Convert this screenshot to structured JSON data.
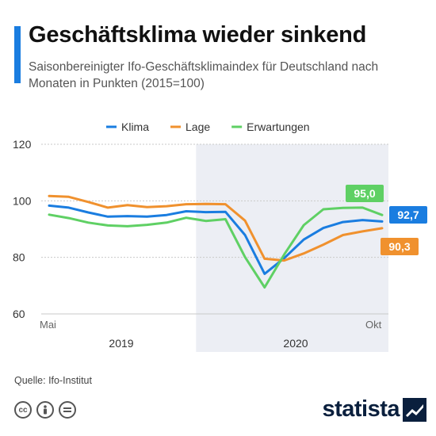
{
  "header": {
    "title": "Geschäftsklima wieder sinkend",
    "subtitle": "Saisonbereinigter Ifo-Geschäftsklimaindex für Deutschland nach Monaten in Punkten (2015=100)"
  },
  "colors": {
    "accent": "#1a7de0",
    "klima": "#1a7de0",
    "lage": "#f0912e",
    "erwartungen": "#5fd064",
    "shade": "#eceef4",
    "grid": "#c9c9c9"
  },
  "chart_data": {
    "type": "line",
    "ylim": [
      60,
      120
    ],
    "yticks": [
      60,
      80,
      100,
      120
    ],
    "x_start_label": "Mai",
    "x_end_label": "Okt",
    "year_labels": [
      "2019",
      "2020"
    ],
    "shaded_from_index": 8,
    "series": [
      {
        "name": "Klima",
        "color_key": "klima",
        "values": [
          98.3,
          97.6,
          95.9,
          94.4,
          94.6,
          94.4,
          95.0,
          96.3,
          96.0,
          96.1,
          87.9,
          74.2,
          79.7,
          86.3,
          90.4,
          92.5,
          93.2,
          92.7
        ],
        "end_label": "92,7"
      },
      {
        "name": "Lage",
        "color_key": "lage",
        "values": [
          101.7,
          101.4,
          99.6,
          97.6,
          98.5,
          97.8,
          98.1,
          98.8,
          98.9,
          98.8,
          93.0,
          79.5,
          78.9,
          81.4,
          84.5,
          87.9,
          89.2,
          90.3
        ],
        "end_label": "90,3"
      },
      {
        "name": "Erwartungen",
        "color_key": "erwartungen",
        "values": [
          95.1,
          93.9,
          92.3,
          91.3,
          91.0,
          91.5,
          92.3,
          94.0,
          92.9,
          93.5,
          80.1,
          69.4,
          81.0,
          91.4,
          97.0,
          97.5,
          97.6,
          95.0
        ],
        "end_label": "95,0"
      }
    ]
  },
  "footer": {
    "source": "Quelle: Ifo-Institut",
    "brand": "statista"
  }
}
